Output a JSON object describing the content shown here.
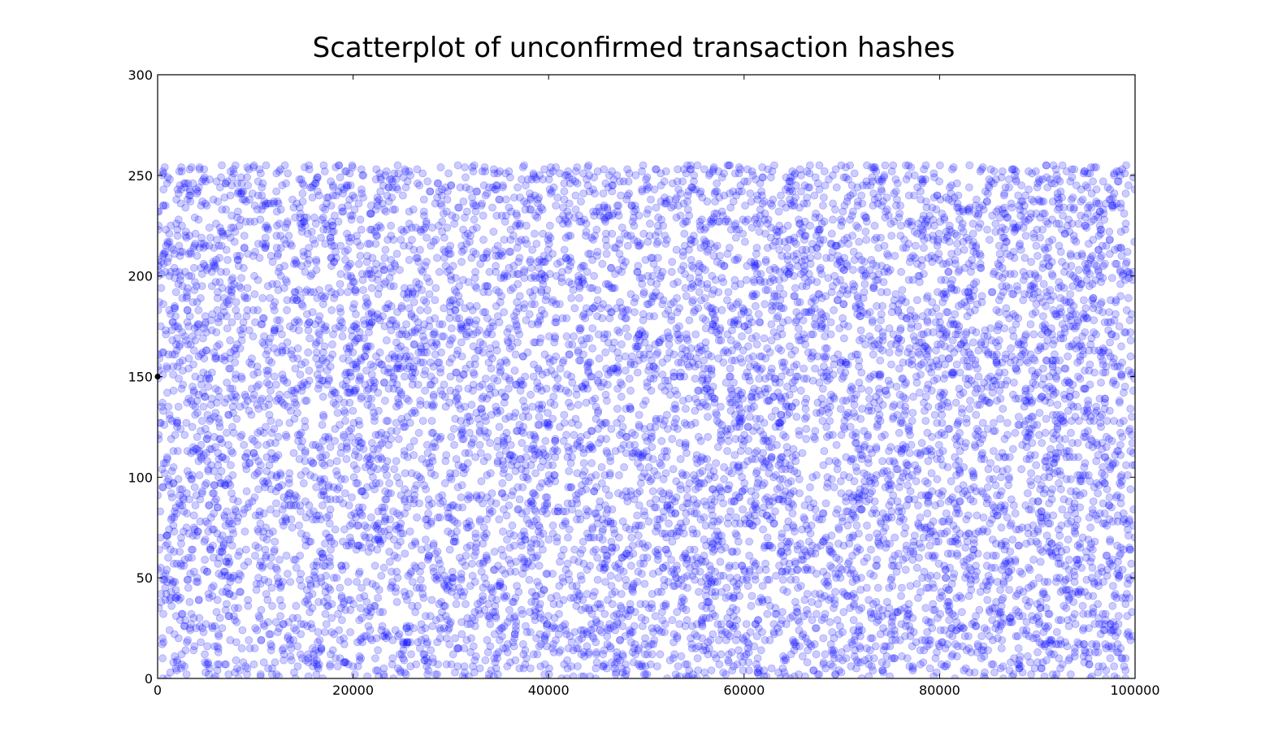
{
  "chart_data": {
    "type": "scatter",
    "title": "Scatterplot of unconfirmed transaction hashes",
    "xlabel": "",
    "ylabel": "",
    "xlim": [
      0,
      100000
    ],
    "ylim": [
      0,
      300
    ],
    "xticks": [
      0,
      20000,
      40000,
      60000,
      80000,
      100000
    ],
    "yticks": [
      0,
      50,
      100,
      150,
      200,
      250,
      300
    ],
    "xtick_labels": [
      "0",
      "20000",
      "40000",
      "60000",
      "80000",
      "100000"
    ],
    "ytick_labels": [
      "0",
      "50",
      "100",
      "150",
      "200",
      "250",
      "300"
    ],
    "grid": false,
    "legend": "none",
    "marker_color": "#0000ff",
    "marker_alpha": 0.1,
    "point_count": 100000,
    "distribution": "x from 0 to 100000 (transaction index); y uniform integer 0 to 255 (hash byte value)",
    "x_range": [
      0,
      100000
    ],
    "y_range": [
      0,
      255
    ],
    "highlighted_point": {
      "x": 0,
      "y": 150,
      "color": "#000000"
    }
  }
}
